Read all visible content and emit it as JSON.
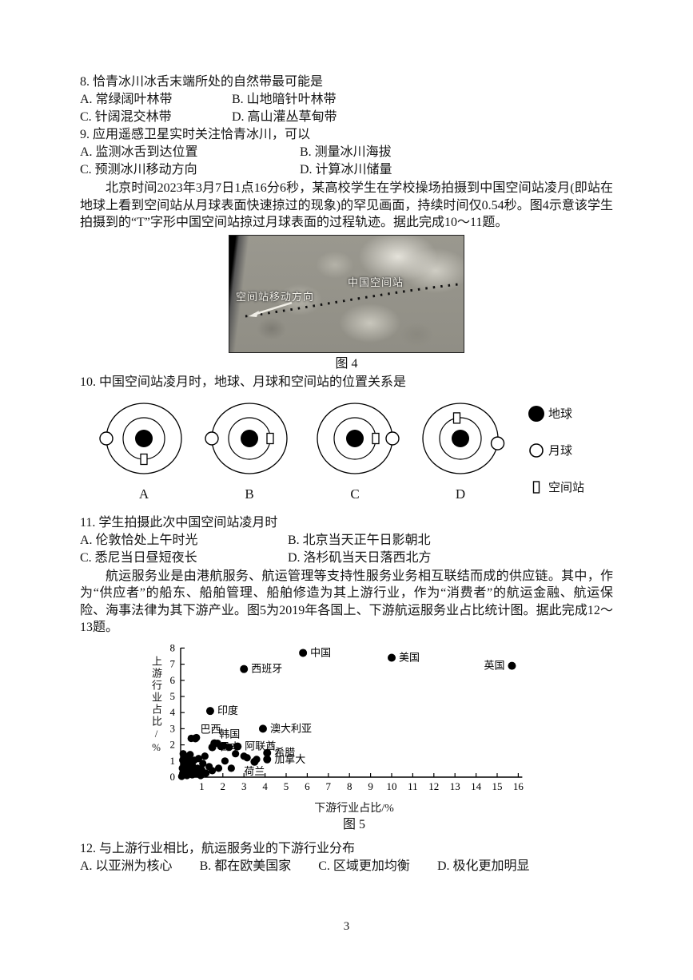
{
  "page": {
    "number": "3"
  },
  "questions": {
    "q8": {
      "stem": "8. 恰青冰川冰舌末端所处的自然带最可能是",
      "options": [
        "A. 常绿阔叶林带",
        "B. 山地暗针叶林带",
        "C. 针阔混交林带",
        "D. 高山灌丛草甸带"
      ]
    },
    "q9": {
      "stem": "9. 应用遥感卫星实时关注恰青冰川，可以",
      "options": [
        "A. 监测冰舌到达位置",
        "B. 测量冰川海拔",
        "C. 预测冰川移动方向",
        "D. 计算冰川储量"
      ]
    },
    "q10": {
      "stem": "10. 中国空间站凌月时，地球、月球和空间站的位置关系是"
    },
    "q11": {
      "stem": "11. 学生拍摄此次中国空间站凌月时",
      "options": [
        "A. 伦敦恰处上午时光",
        "B. 北京当天正午日影朝北",
        "C. 悉尼当日昼短夜长",
        "D. 洛杉矶当天日落西北方"
      ]
    },
    "q12": {
      "stem": "12. 与上游行业相比，航运服务业的下游行业分布",
      "options": [
        "A. 以亚洲为核心",
        "B. 都在欧美国家",
        "C. 区域更加均衡",
        "D. 极化更加明显"
      ]
    }
  },
  "passages": {
    "p1": "北京时间2023年3月7日1点16分6秒，某高校学生在学校操场拍摄到中国空间站凌月(即站在地球上看到空间站从月球表面快速掠过的现象)的罕见画面，持续时间仅0.54秒。图4示意该学生拍摄到的“T”字形中国空间站掠过月球表面的过程轨迹。据此完成10～11题。",
    "p2": "航运服务业是由港航服务、航运管理等支持性服务业务相互联结而成的供应链。其中，作为“供应者”的船东、船舶管理、船舶修造为其上游行业，作为“消费者”的航运金融、航运保险、海事法律为其下游产业。图5为2019年各国上、下游航运服务业占比统计图。据此完成12～13题。"
  },
  "figure4": {
    "caption": "图 4",
    "station_label": "中国空间站",
    "direction_label": "空间站移动方向"
  },
  "q10_diagrams": {
    "items": [
      {
        "label": "A",
        "moon_angle": 180,
        "station_angle": 270
      },
      {
        "label": "B",
        "moon_angle": 180,
        "station_angle": 0
      },
      {
        "label": "C",
        "moon_angle": 0,
        "station_angle": 0
      },
      {
        "label": "D",
        "moon_angle": -8,
        "station_angle": 100
      }
    ],
    "legend": [
      {
        "symbol": "earth-icon",
        "label": "地球"
      },
      {
        "symbol": "moon-icon",
        "label": "月球"
      },
      {
        "symbol": "station-icon",
        "label": "空间站"
      }
    ]
  },
  "chart_data": {
    "type": "scatter",
    "title": "图 5",
    "xlabel": "下游行业占比/%",
    "ylabel": "上游行业占比/%",
    "xlim": [
      0,
      16
    ],
    "ylim": [
      0,
      8
    ],
    "grid": false,
    "xticks": [
      1,
      2,
      3,
      4,
      5,
      6,
      7,
      8,
      9,
      10,
      11,
      12,
      13,
      14,
      15,
      16
    ],
    "yticks": [
      0,
      1,
      2,
      3,
      4,
      5,
      6,
      7,
      8
    ],
    "labeled_points": [
      {
        "label": "中国",
        "x": 5.8,
        "y": 7.7,
        "label_side": "right"
      },
      {
        "label": "美国",
        "x": 10.0,
        "y": 7.4,
        "label_side": "right"
      },
      {
        "label": "英国",
        "x": 15.7,
        "y": 6.9,
        "label_side": "left"
      },
      {
        "label": "西班牙",
        "x": 3.0,
        "y": 6.7,
        "label_side": "right"
      },
      {
        "label": "印度",
        "x": 1.4,
        "y": 4.1,
        "label_side": "right"
      },
      {
        "label": "巴西",
        "x": 0.7,
        "y": 2.4,
        "label_side": "above-right"
      },
      {
        "label": "澳大利亚",
        "x": 3.9,
        "y": 3.0,
        "label_side": "right"
      },
      {
        "label": "韩国",
        "x": 1.6,
        "y": 2.1,
        "label_side": "above-right"
      },
      {
        "label": "日本",
        "x": 1.5,
        "y": 1.85,
        "label_side": "right"
      },
      {
        "label": "阿联酋",
        "x": 2.7,
        "y": 1.9,
        "label_side": "right"
      },
      {
        "label": "希腊",
        "x": 4.1,
        "y": 1.5,
        "label_side": "right"
      },
      {
        "label": "加拿大",
        "x": 4.1,
        "y": 1.1,
        "label_side": "right"
      },
      {
        "label": "荷兰",
        "x": 3.5,
        "y": 0.95,
        "label_side": "below"
      }
    ],
    "unlabeled_points": [
      [
        0.05,
        0.05
      ],
      [
        0.1,
        0.25
      ],
      [
        0.08,
        0.55
      ],
      [
        0.15,
        0.8
      ],
      [
        0.1,
        1.05
      ],
      [
        0.2,
        1.25
      ],
      [
        0.12,
        1.45
      ],
      [
        0.3,
        0.1
      ],
      [
        0.35,
        0.35
      ],
      [
        0.3,
        0.6
      ],
      [
        0.4,
        0.9
      ],
      [
        0.35,
        1.15
      ],
      [
        0.45,
        1.4
      ],
      [
        0.55,
        0.15
      ],
      [
        0.6,
        0.45
      ],
      [
        0.55,
        0.75
      ],
      [
        0.65,
        1.05
      ],
      [
        0.75,
        0.2
      ],
      [
        0.8,
        0.55
      ],
      [
        0.85,
        1.15
      ],
      [
        0.95,
        0.1
      ],
      [
        1.0,
        0.45
      ],
      [
        1.05,
        0.85
      ],
      [
        1.15,
        1.3
      ],
      [
        1.2,
        0.25
      ],
      [
        1.35,
        0.65
      ],
      [
        1.5,
        0.4
      ],
      [
        1.8,
        0.55
      ],
      [
        0.5,
        2.4
      ],
      [
        0.75,
        2.45
      ],
      [
        1.75,
        2.1
      ],
      [
        1.9,
        1.9
      ],
      [
        2.05,
        1.95
      ],
      [
        2.1,
        1.0
      ],
      [
        2.3,
        1.85
      ],
      [
        2.6,
        1.45
      ],
      [
        3.0,
        1.3
      ],
      [
        3.15,
        1.2
      ],
      [
        2.4,
        0.55
      ],
      [
        3.6,
        1.1
      ]
    ]
  }
}
